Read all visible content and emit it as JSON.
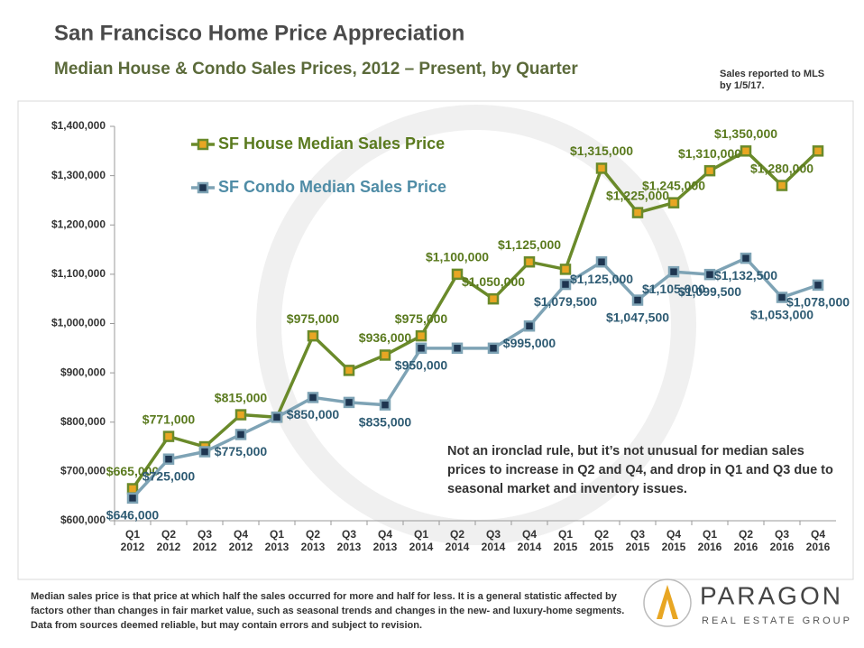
{
  "chart_data": {
    "type": "line",
    "title": "San Francisco Home Price Appreciation",
    "subtitle": "Median House & Condo Sales Prices, 2012 – Present, by Quarter",
    "note": "Sales reported to MLS by 1/5/17.",
    "annotation": "Not an ironclad rule, but it’s not unusual for median sales prices to increase in Q2 and Q4, and drop in Q1 and Q3 due to seasonal market and inventory issues.",
    "footnote": "Median sales price is that price at which half the sales occurred for more and half for less. It is a general statistic affected by factors other than changes in fair market value, such as seasonal trends and changes in the new- and luxury-home segments. Data from sources deemed reliable, but may contain errors and subject to revision.",
    "logo": {
      "name": "PARAGON",
      "tagline": "REAL ESTATE GROUP"
    },
    "categories": [
      "Q1 2012",
      "Q2 2012",
      "Q3 2012",
      "Q4 2012",
      "Q1 2013",
      "Q2 2013",
      "Q3 2013",
      "Q4 2013",
      "Q1 2014",
      "Q2 2014",
      "Q3 2014",
      "Q4 2014",
      "Q1 2015",
      "Q2 2015",
      "Q3 2015",
      "Q4 2015",
      "Q1 2016",
      "Q2 2016",
      "Q3 2016",
      "Q4 2016"
    ],
    "series": [
      {
        "name": "SF House Median Sales Price",
        "color": "#6a8a2a",
        "marker_color": "#e8a623",
        "values": [
          665000,
          771000,
          750000,
          815000,
          810000,
          975000,
          905000,
          936000,
          975000,
          1100000,
          1050000,
          1125000,
          1110000,
          1315000,
          1225000,
          1245000,
          1310000,
          1350000,
          1280000,
          1350000
        ],
        "value_labels": [
          "$665,000",
          "$771,000",
          null,
          "$815,000",
          null,
          "$975,000",
          null,
          "$936,000",
          "$975,000",
          "$1,100,000",
          "$1,050,000",
          "$1,125,000",
          null,
          "$1,315,000",
          "$1,225,000",
          "$1,245,000",
          "$1,310,000",
          "$1,350,000",
          "$1,280,000",
          null
        ]
      },
      {
        "name": "SF Condo Median Sales Price",
        "color": "#7ea3b5",
        "marker_color": "#1e3550",
        "values": [
          646000,
          725000,
          740000,
          775000,
          810000,
          850000,
          840000,
          835000,
          950000,
          950000,
          950000,
          995000,
          1079500,
          1125000,
          1047500,
          1105000,
          1099500,
          1132500,
          1053000,
          1078000
        ],
        "value_labels": [
          "$646,000",
          "$725,000",
          null,
          "$775,000",
          null,
          "$850,000",
          null,
          "$835,000",
          "$950,000",
          null,
          null,
          "$995,000",
          "$1,079,500",
          "$1,125,000",
          "$1,047,500",
          "$1,105,000",
          "$1,099,500",
          "$1,132,500",
          "$1,053,000",
          "$1,078,000"
        ]
      }
    ],
    "ylim": [
      600000,
      1400000
    ],
    "yticks": [
      {
        "value": 600000,
        "label": "$600,000"
      },
      {
        "value": 700000,
        "label": "$700,000"
      },
      {
        "value": 800000,
        "label": "$800,000"
      },
      {
        "value": 900000,
        "label": "$900,000"
      },
      {
        "value": 1000000,
        "label": "$1,000,000"
      },
      {
        "value": 1100000,
        "label": "$1,100,000"
      },
      {
        "value": 1200000,
        "label": "$1,200,000"
      },
      {
        "value": 1300000,
        "label": "$1,300,000"
      },
      {
        "value": 1400000,
        "label": "$1,400,000"
      }
    ],
    "legend": "upper left",
    "grid": false
  }
}
